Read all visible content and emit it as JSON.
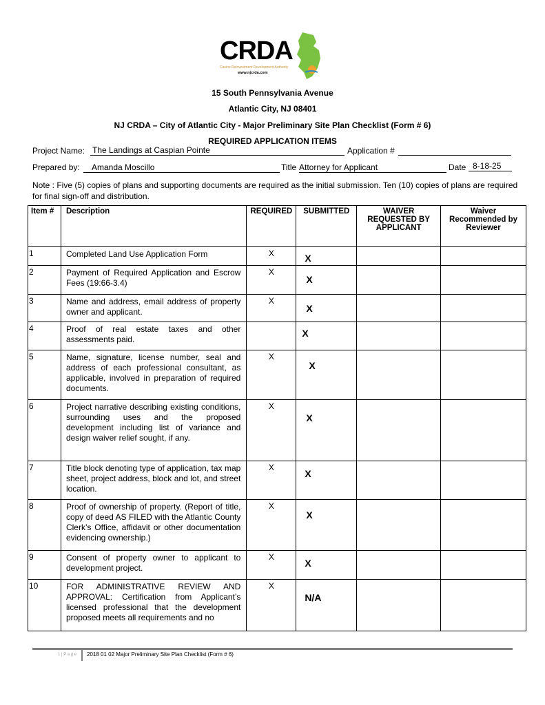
{
  "logo": {
    "text": "CRDA",
    "subtitle": "Casino Reinvestment Development Authority",
    "url": "www.njcrda.com",
    "brand_green": "#7cc242"
  },
  "header": {
    "address1": "15 South Pennsylvania Avenue",
    "address2": "Atlantic City, NJ 08401",
    "form_title": "NJ CRDA – City of Atlantic City - Major Preliminary Site Plan Checklist (Form # 6)",
    "section_title": "REQUIRED APPLICATION ITEMS"
  },
  "fields": {
    "project_name_label": "Project Name:",
    "project_name": "The Landings at Caspian Pointe",
    "application_label": "Application #",
    "application_value": "",
    "prepared_by_label": "Prepared by:",
    "prepared_by": "Amanda Moscillo",
    "title_label": "Title",
    "title": "Attorney for Applicant",
    "date_label": "Date",
    "date": "8-18-25"
  },
  "note": "Note : Five (5) copies of plans and supporting documents are required as the initial submission. Ten (10) copies of plans are required for final sign-off and distribution.",
  "table": {
    "headers": [
      "Item #",
      "Description",
      "REQUIRED",
      "SUBMITTED",
      "WAIVER REQUESTED BY APPLICANT",
      "Waiver Recommended by Reviewer"
    ],
    "rows": [
      {
        "item": "1",
        "desc": "Completed Land Use Application Form",
        "required": "X",
        "submitted": "X",
        "waiver": "",
        "reviewer": ""
      },
      {
        "item": "2",
        "desc": "Payment of Required Application and Escrow Fees (19:66-3.4)",
        "required": "X",
        "submitted": "X",
        "waiver": "",
        "reviewer": ""
      },
      {
        "item": "3",
        "desc": "Name and address, email address of property owner and applicant.",
        "required": "X",
        "submitted": "X",
        "waiver": "",
        "reviewer": ""
      },
      {
        "item": "4",
        "desc": "Proof of real estate taxes and other assessments paid.",
        "required": "",
        "submitted": "X",
        "waiver": "",
        "reviewer": ""
      },
      {
        "item": "5",
        "desc": "Name, signature, license number, seal and address of each professional consultant, as applicable, involved in preparation of required documents.",
        "required": "X",
        "submitted": "X",
        "waiver": "",
        "reviewer": ""
      },
      {
        "item": "6",
        "desc": "Project narrative describing existing conditions, surrounding uses and the proposed development including list of variance and design waiver relief sought, if any.",
        "required": "X",
        "submitted": "X",
        "waiver": "",
        "reviewer": ""
      },
      {
        "item": "7",
        "desc": "Title block denoting type of application, tax map sheet, project address, block and lot, and street location.",
        "required": "X",
        "submitted": "X",
        "waiver": "",
        "reviewer": ""
      },
      {
        "item": "8",
        "desc": "Proof of ownership of property. (Report of title, copy of deed AS FILED with the Atlantic County Clerk’s Office, affidavit or other documentation evidencing ownership.)",
        "required": "X",
        "submitted": "X",
        "waiver": "",
        "reviewer": ""
      },
      {
        "item": "9",
        "desc": "Consent of property owner to applicant to development project.",
        "required": "X",
        "submitted": "X",
        "waiver": "",
        "reviewer": ""
      },
      {
        "item": "10",
        "desc": "FOR ADMINISTRATIVE REVIEW AND APPROVAL: Certification from Applicant’s licensed professional that the development proposed meets all requirements and no",
        "required": "X",
        "submitted": "N/A",
        "waiver": "",
        "reviewer": ""
      }
    ]
  },
  "footer": {
    "text": "2018 01 02 Major Preliminary Site Plan Checklist (Form # 6)"
  }
}
